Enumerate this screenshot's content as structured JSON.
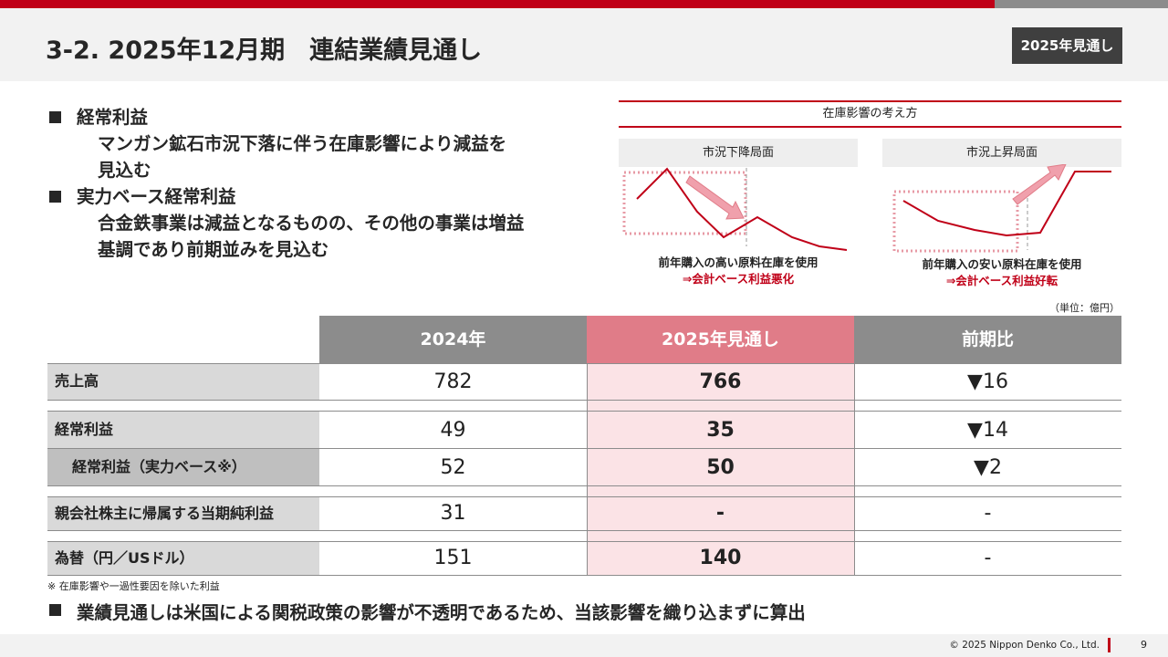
{
  "header": {
    "title": "3-2. 2025年12月期　連結業績見通し",
    "badge": "2025年見通し"
  },
  "bullets": [
    {
      "head": "経常利益",
      "lines": [
        "マンガン鉱石市況下落に伴う在庫影響により減益を",
        "見込む"
      ]
    },
    {
      "head": "実力ベース経常利益",
      "lines": [
        "合金鉄事業は減益となるものの、その他の事業は増益",
        "基調であり前期並みを見込む"
      ]
    }
  ],
  "diagram": {
    "title": "在庫影響の考え方",
    "left": {
      "label": "市況下降局面",
      "caption1": "前年購入の高い原料在庫を使用",
      "caption2": "⇒会計ベース利益悪化"
    },
    "right": {
      "label": "市況上昇局面",
      "caption1": "前年購入の安い原料在庫を使用",
      "caption2": "⇒会計ベース利益好転"
    },
    "colors": {
      "line": "#c00018",
      "arrow": "#f0a0ac"
    }
  },
  "table": {
    "unit": "（単位：億円）",
    "headers": [
      "2024年",
      "2025年見通し",
      "前期比"
    ],
    "rows": [
      {
        "label": "売上高",
        "v2024": "782",
        "v2025": "766",
        "diff": "▼16"
      },
      {
        "label": "経常利益",
        "v2024": "49",
        "v2025": "35",
        "diff": "▼14"
      },
      {
        "label": "経常利益（実力ベース※）",
        "v2024": "52",
        "v2025": "50",
        "diff": "▼2"
      },
      {
        "label": "親会社株主に帰属する当期純利益",
        "v2024": "31",
        "v2025": "-",
        "diff": "-"
      },
      {
        "label": "為替（円／USドル）",
        "v2024": "151",
        "v2025": "140",
        "diff": "-"
      }
    ],
    "colors": {
      "header_gray": "#8c8c8c",
      "header_pink": "#e07c88",
      "highlight": "#fbe3e6"
    }
  },
  "footnote": "※ 在庫影響や一過性要因を除いた利益",
  "bottom_bullet": "業績見通しは米国による関税政策の影響が不透明であるため、当該影響を織り込まずに算出",
  "footer": {
    "copyright": "© 2025 Nippon Denko Co., Ltd.",
    "page": "9"
  }
}
